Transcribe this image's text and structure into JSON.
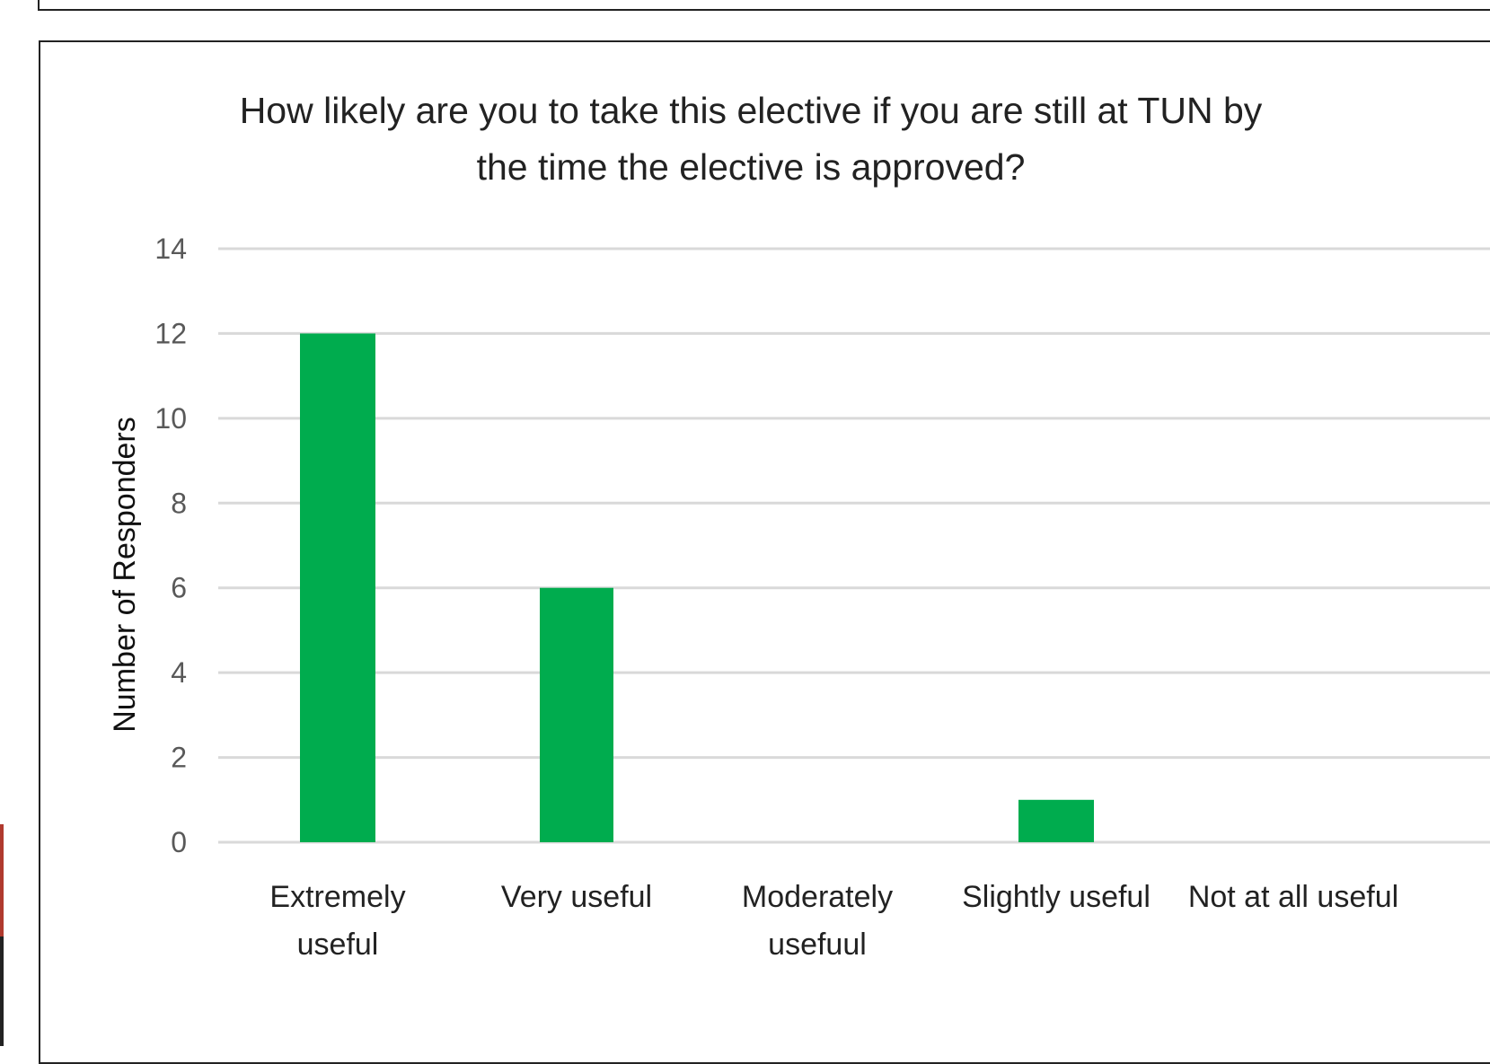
{
  "chart_data": {
    "type": "bar",
    "title": [
      "How likely are you to take this elective if you are still at TUN by",
      "the time the elective is approved?"
    ],
    "ylabel": "Number of Responders",
    "xlabel": "",
    "categories": [
      [
        "Extremely",
        "useful"
      ],
      [
        "Very useful"
      ],
      [
        "Moderately",
        "usefuul"
      ],
      [
        "Slightly useful"
      ],
      [
        "Not at all useful"
      ]
    ],
    "values": [
      12,
      6,
      0,
      1,
      0
    ],
    "ylim": [
      0,
      14
    ],
    "yticks": [
      0,
      2,
      4,
      6,
      8,
      10,
      12,
      14
    ],
    "grid": true,
    "bar_color": "#00ac4e",
    "grid_color": "#d9d9d9"
  }
}
